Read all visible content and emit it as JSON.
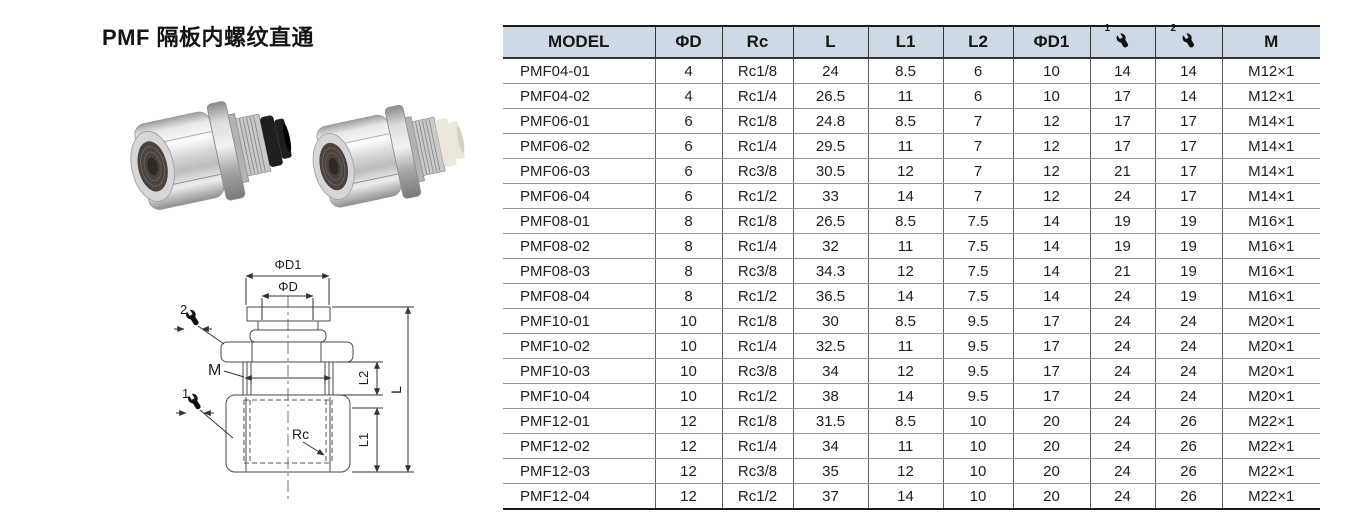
{
  "title": "PMF 隔板内螺纹直通",
  "photos": {
    "left": {
      "collar_color": "#1f1f1f",
      "tip_color": "#000000"
    },
    "right": {
      "collar_color": "#ebe7da",
      "tip_color": "#d6d0bf"
    }
  },
  "diagram": {
    "dim_d1": "ΦD1",
    "dim_d": "ΦD",
    "num_2": "2",
    "label_m": "M",
    "dim_l2": "L2",
    "num_1": "1",
    "label_rc": "Rc",
    "dim_l1": "L1",
    "dim_l": "L"
  },
  "table": {
    "columns": [
      {
        "name": "model",
        "label": "MODEL",
        "type": "text"
      },
      {
        "name": "phi-d",
        "label": "ΦD",
        "type": "text"
      },
      {
        "name": "rc",
        "label": "Rc",
        "type": "text"
      },
      {
        "name": "l",
        "label": "L",
        "type": "text"
      },
      {
        "name": "l1",
        "label": "L1",
        "type": "text"
      },
      {
        "name": "l2",
        "label": "L2",
        "type": "text"
      },
      {
        "name": "phi-d1",
        "label": "ΦD1",
        "type": "text"
      },
      {
        "name": "wrench-1",
        "label": "1",
        "type": "wrench"
      },
      {
        "name": "wrench-2",
        "label": "2",
        "type": "wrench"
      },
      {
        "name": "m",
        "label": "M",
        "type": "text"
      }
    ],
    "rows": [
      [
        "PMF04-01",
        "4",
        "Rc1/8",
        "24",
        "8.5",
        "6",
        "10",
        "14",
        "14",
        "M12×1"
      ],
      [
        "PMF04-02",
        "4",
        "Rc1/4",
        "26.5",
        "11",
        "6",
        "10",
        "17",
        "14",
        "M12×1"
      ],
      [
        "PMF06-01",
        "6",
        "Rc1/8",
        "24.8",
        "8.5",
        "7",
        "12",
        "17",
        "17",
        "M14×1"
      ],
      [
        "PMF06-02",
        "6",
        "Rc1/4",
        "29.5",
        "11",
        "7",
        "12",
        "17",
        "17",
        "M14×1"
      ],
      [
        "PMF06-03",
        "6",
        "Rc3/8",
        "30.5",
        "12",
        "7",
        "12",
        "21",
        "17",
        "M14×1"
      ],
      [
        "PMF06-04",
        "6",
        "Rc1/2",
        "33",
        "14",
        "7",
        "12",
        "24",
        "17",
        "M14×1"
      ],
      [
        "PMF08-01",
        "8",
        "Rc1/8",
        "26.5",
        "8.5",
        "7.5",
        "14",
        "19",
        "19",
        "M16×1"
      ],
      [
        "PMF08-02",
        "8",
        "Rc1/4",
        "32",
        "11",
        "7.5",
        "14",
        "19",
        "19",
        "M16×1"
      ],
      [
        "PMF08-03",
        "8",
        "Rc3/8",
        "34.3",
        "12",
        "7.5",
        "14",
        "21",
        "19",
        "M16×1"
      ],
      [
        "PMF08-04",
        "8",
        "Rc1/2",
        "36.5",
        "14",
        "7.5",
        "14",
        "24",
        "19",
        "M16×1"
      ],
      [
        "PMF10-01",
        "10",
        "Rc1/8",
        "30",
        "8.5",
        "9.5",
        "17",
        "24",
        "24",
        "M20×1"
      ],
      [
        "PMF10-02",
        "10",
        "Rc1/4",
        "32.5",
        "11",
        "9.5",
        "17",
        "24",
        "24",
        "M20×1"
      ],
      [
        "PMF10-03",
        "10",
        "Rc3/8",
        "34",
        "12",
        "9.5",
        "17",
        "24",
        "24",
        "M20×1"
      ],
      [
        "PMF10-04",
        "10",
        "Rc1/2",
        "38",
        "14",
        "9.5",
        "17",
        "24",
        "24",
        "M20×1"
      ],
      [
        "PMF12-01",
        "12",
        "Rc1/8",
        "31.5",
        "8.5",
        "10",
        "20",
        "24",
        "26",
        "M22×1"
      ],
      [
        "PMF12-02",
        "12",
        "Rc1/4",
        "34",
        "11",
        "10",
        "20",
        "24",
        "26",
        "M22×1"
      ],
      [
        "PMF12-03",
        "12",
        "Rc3/8",
        "35",
        "12",
        "10",
        "20",
        "24",
        "26",
        "M22×1"
      ],
      [
        "PMF12-04",
        "12",
        "Rc1/2",
        "37",
        "14",
        "10",
        "20",
        "24",
        "26",
        "M22×1"
      ]
    ]
  },
  "colors": {
    "header_bg": "#cdd9e5",
    "grid_line_h": "#8e959b",
    "grid_line_v": "#5f6468",
    "frame_line": "#1a1a1a"
  }
}
